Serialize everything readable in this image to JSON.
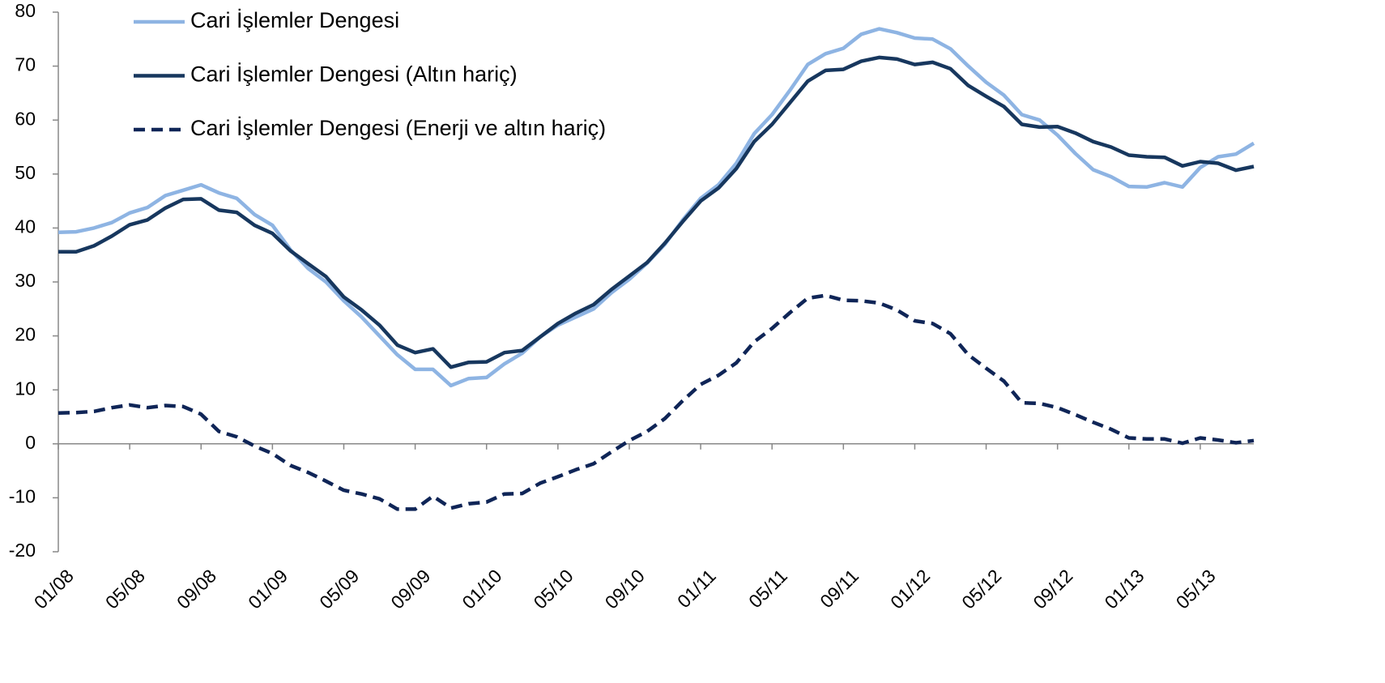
{
  "chart_data": {
    "type": "line",
    "categories": [
      "01/08",
      null,
      null,
      null,
      "05/08",
      null,
      null,
      null,
      "09/08",
      null,
      null,
      null,
      "01/09",
      null,
      null,
      null,
      "05/09",
      null,
      null,
      null,
      "09/09",
      null,
      null,
      null,
      "01/10",
      null,
      null,
      null,
      "05/10",
      null,
      null,
      null,
      "09/10",
      null,
      null,
      null,
      "01/11",
      null,
      null,
      null,
      "05/11",
      null,
      null,
      null,
      "09/11",
      null,
      null,
      null,
      "01/12",
      null,
      null,
      null,
      "05/12",
      null,
      null,
      null,
      "09/12",
      null,
      null,
      null,
      "01/13",
      null,
      null,
      null,
      "05/13",
      null,
      null,
      null
    ],
    "series": [
      {
        "name": "Cari İşlemler Dengesi",
        "color": "#8eb4e3",
        "dash": false,
        "values": [
          39.2,
          39.3,
          40,
          41,
          42.8,
          43.8,
          46,
          47,
          48,
          46.5,
          45.5,
          42.5,
          40.5,
          36,
          32.5,
          30,
          26.5,
          23.5,
          20,
          16.5,
          13.8,
          13.8,
          10.8,
          12.1,
          12.3,
          14.8,
          16.8,
          19.8,
          22,
          23.5,
          25,
          28,
          30.5,
          33.5,
          37,
          41.5,
          45.5,
          48,
          52,
          57.5,
          61,
          65.5,
          70.3,
          72.3,
          73.3,
          75.9,
          76.9,
          76.2,
          75.2,
          75,
          73.2,
          70,
          67,
          64.6,
          61,
          60,
          57.2,
          53.8,
          50.8,
          49.5,
          47.7,
          47.6,
          48.4,
          47.6,
          51.2,
          53.2,
          53.7,
          55.7
        ]
      },
      {
        "name": "Cari İşlemler Dengesi (Altın hariç)",
        "color": "#17375e",
        "dash": false,
        "values": [
          35.6,
          35.6,
          36.7,
          38.5,
          40.6,
          41.5,
          43.7,
          45.3,
          45.4,
          43.3,
          42.9,
          40.5,
          39,
          35.8,
          33.4,
          31,
          27.2,
          24.8,
          22,
          18.3,
          16.9,
          17.6,
          14.2,
          15.1,
          15.2,
          16.9,
          17.3,
          19.8,
          22.3,
          24.2,
          25.8,
          28.6,
          31.1,
          33.6,
          37.2,
          41.2,
          45,
          47.4,
          51,
          56,
          59.2,
          63.2,
          67.2,
          69.2,
          69.4,
          70.9,
          71.6,
          71.3,
          70.3,
          70.7,
          69.5,
          66.4,
          64.4,
          62.5,
          59.2,
          58.7,
          58.8,
          57.6,
          56,
          55,
          53.5,
          53.2,
          53.1,
          51.5,
          52.3,
          52,
          50.7,
          51.4
        ]
      },
      {
        "name": "Cari İşlemler Dengesi (Enerji ve altın hariç)",
        "color": "#0f2557",
        "dash": true,
        "values": [
          5.7,
          5.8,
          6,
          6.7,
          7.2,
          6.7,
          7.1,
          6.9,
          5.5,
          2.3,
          1.3,
          -0.4,
          -1.8,
          -4,
          -5.3,
          -6.9,
          -8.6,
          -9.3,
          -10.2,
          -12.1,
          -12.1,
          -9.7,
          -11.9,
          -11.1,
          -10.8,
          -9.3,
          -9.2,
          -7.3,
          -6.1,
          -4.8,
          -3.7,
          -1.5,
          0.6,
          2.3,
          4.7,
          8,
          11,
          12.7,
          15,
          18.9,
          21.4,
          24.3,
          27,
          27.5,
          26.6,
          26.5,
          26.1,
          24.8,
          22.8,
          22.3,
          20.4,
          16.5,
          14,
          11.6,
          7.6,
          7.5,
          6.7,
          5.4,
          4,
          2.7,
          1.1,
          0.9,
          0.9,
          0.1,
          1.1,
          0.7,
          0.2,
          0.6
        ]
      }
    ],
    "ylim": [
      -20,
      80
    ],
    "yticks": [
      -20,
      -10,
      0,
      10,
      20,
      30,
      40,
      50,
      60,
      70,
      80
    ],
    "grid": false,
    "legend": "top-left"
  }
}
